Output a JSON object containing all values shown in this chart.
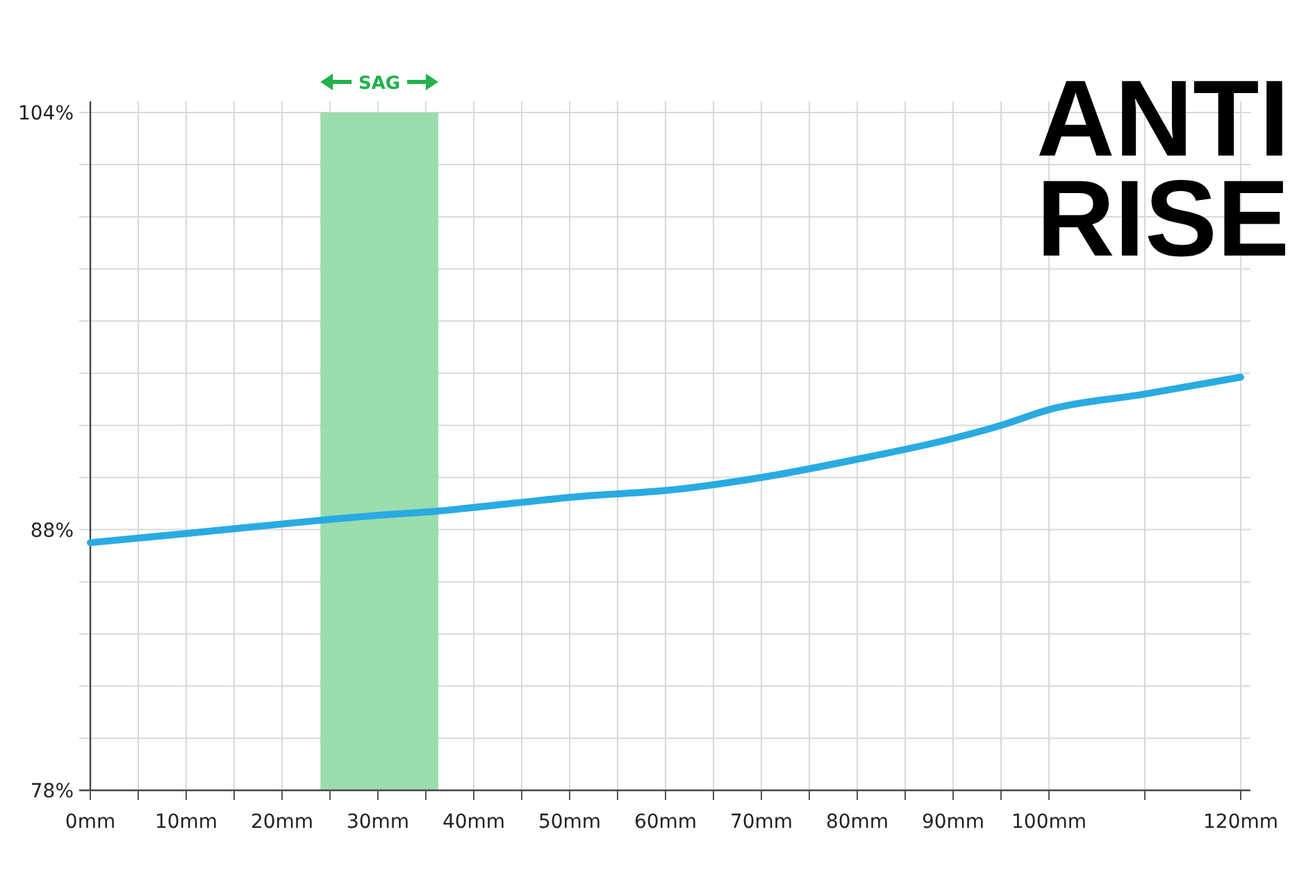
{
  "chart_data": {
    "type": "line",
    "title": "ANTI RISE",
    "x": [
      0,
      10,
      24,
      30,
      36,
      40,
      52,
      60,
      70,
      80,
      90,
      95,
      100,
      110,
      120
    ],
    "series": [
      {
        "color": "#29abe2",
        "values": [
          87.5,
          87.85,
          88.36,
          88.55,
          88.7,
          88.85,
          89.3,
          89.5,
          90.0,
          90.7,
          91.5,
          92.0,
          92.6,
          93.2,
          93.85
        ]
      }
    ],
    "xlim": [
      0,
      120
    ],
    "xticks": [
      {
        "value": 0,
        "label": "0mm"
      },
      {
        "value": 5,
        "label": null
      },
      {
        "value": 10,
        "label": "10mm"
      },
      {
        "value": 15,
        "label": null
      },
      {
        "value": 20,
        "label": "20mm"
      },
      {
        "value": 25,
        "label": null
      },
      {
        "value": 30,
        "label": "30mm"
      },
      {
        "value": 35,
        "label": null
      },
      {
        "value": 40,
        "label": "40mm"
      },
      {
        "value": 45,
        "label": null
      },
      {
        "value": 50,
        "label": "50mm"
      },
      {
        "value": 55,
        "label": null
      },
      {
        "value": 60,
        "label": "60mm"
      },
      {
        "value": 65,
        "label": null
      },
      {
        "value": 70,
        "label": "70mm"
      },
      {
        "value": 75,
        "label": null
      },
      {
        "value": 80,
        "label": "80mm"
      },
      {
        "value": 85,
        "label": null
      },
      {
        "value": 90,
        "label": "90mm"
      },
      {
        "value": 95,
        "label": null
      },
      {
        "value": 100,
        "label": "100mm"
      },
      {
        "value": 110,
        "label": null
      },
      {
        "value": 120,
        "label": "120mm"
      }
    ],
    "ylim": [
      78,
      104
    ],
    "yticks": [
      {
        "value": 78,
        "label": "78%"
      },
      {
        "value": 80,
        "label": null
      },
      {
        "value": 82,
        "label": null
      },
      {
        "value": 84,
        "label": null
      },
      {
        "value": 86,
        "label": null
      },
      {
        "value": 88,
        "label": "88%"
      },
      {
        "value": 90,
        "label": null
      },
      {
        "value": 92,
        "label": null
      },
      {
        "value": 94,
        "label": null
      },
      {
        "value": 96,
        "label": null
      },
      {
        "value": 98,
        "label": null
      },
      {
        "value": 100,
        "label": null
      },
      {
        "value": 102,
        "label": null
      },
      {
        "value": 104,
        "label": "104%"
      }
    ],
    "bands": [
      {
        "axis": "x",
        "from": 24,
        "to": 36.3,
        "label": "SAG",
        "color": "#97dbaa"
      }
    ],
    "grid": true,
    "line_style": "solid",
    "marker": "none"
  }
}
